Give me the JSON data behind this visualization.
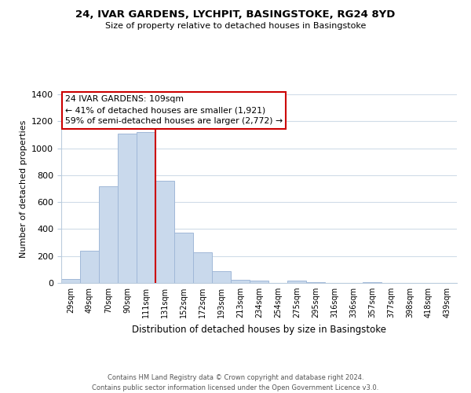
{
  "title": "24, IVAR GARDENS, LYCHPIT, BASINGSTOKE, RG24 8YD",
  "subtitle": "Size of property relative to detached houses in Basingstoke",
  "xlabel": "Distribution of detached houses by size in Basingstoke",
  "ylabel": "Number of detached properties",
  "bar_labels": [
    "29sqm",
    "49sqm",
    "70sqm",
    "90sqm",
    "111sqm",
    "131sqm",
    "152sqm",
    "172sqm",
    "193sqm",
    "213sqm",
    "234sqm",
    "254sqm",
    "275sqm",
    "295sqm",
    "316sqm",
    "336sqm",
    "357sqm",
    "377sqm",
    "398sqm",
    "418sqm",
    "439sqm"
  ],
  "bar_values": [
    30,
    240,
    720,
    1110,
    1120,
    760,
    375,
    230,
    90,
    25,
    18,
    0,
    18,
    5,
    0,
    0,
    5,
    0,
    0,
    0,
    0
  ],
  "bar_color": "#c9d9ec",
  "bar_edge_color": "#a0b8d8",
  "vline_x": 4.5,
  "vline_color": "#cc0000",
  "ylim": [
    0,
    1400
  ],
  "yticks": [
    0,
    200,
    400,
    600,
    800,
    1000,
    1200,
    1400
  ],
  "annotation_text": "24 IVAR GARDENS: 109sqm\n← 41% of detached houses are smaller (1,921)\n59% of semi-detached houses are larger (2,772) →",
  "annotation_box_color": "#ffffff",
  "annotation_box_edge": "#cc0000",
  "footer_line1": "Contains HM Land Registry data © Crown copyright and database right 2024.",
  "footer_line2": "Contains public sector information licensed under the Open Government Licence v3.0.",
  "bg_color": "#ffffff",
  "grid_color": "#d0dce8"
}
